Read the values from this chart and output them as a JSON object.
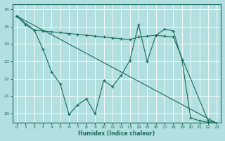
{
  "xlabel": "Humidex (Indice chaleur)",
  "background_color": "#b2dfdf",
  "grid_color": "#c8ecec",
  "line_color": "#1a6b5a",
  "xlim": [
    -0.5,
    23.5
  ],
  "ylim": [
    19.5,
    26.3
  ],
  "yticks": [
    20,
    21,
    22,
    23,
    24,
    25,
    26
  ],
  "xticks": [
    0,
    1,
    2,
    3,
    4,
    5,
    6,
    7,
    8,
    9,
    10,
    11,
    12,
    13,
    14,
    15,
    16,
    17,
    18,
    19,
    20,
    21,
    22,
    23
  ],
  "line1_x": [
    0,
    1,
    2,
    3,
    4,
    5,
    6,
    7,
    8,
    9,
    10,
    11,
    12,
    13,
    14,
    15,
    16,
    17,
    18,
    19,
    20,
    21,
    22,
    23
  ],
  "line1_y": [
    25.6,
    25.1,
    24.8,
    23.7,
    22.4,
    21.7,
    19.95,
    20.5,
    20.85,
    20.0,
    21.9,
    21.55,
    22.2,
    23.05,
    25.1,
    23.0,
    24.5,
    24.85,
    24.75,
    23.1,
    19.75,
    19.6,
    19.5,
    19.45
  ],
  "line2_x": [
    0,
    2,
    3,
    4,
    5,
    6,
    7,
    8,
    9,
    10,
    11,
    12,
    13,
    14,
    15,
    16,
    17,
    18,
    22,
    23
  ],
  "line2_y": [
    25.6,
    24.8,
    24.75,
    24.7,
    24.65,
    24.6,
    24.55,
    24.5,
    24.45,
    24.4,
    24.35,
    24.3,
    24.25,
    24.4,
    24.45,
    24.5,
    24.45,
    24.4,
    19.6,
    19.45
  ],
  "line3_x": [
    0,
    23
  ],
  "line3_y": [
    25.6,
    19.45
  ]
}
